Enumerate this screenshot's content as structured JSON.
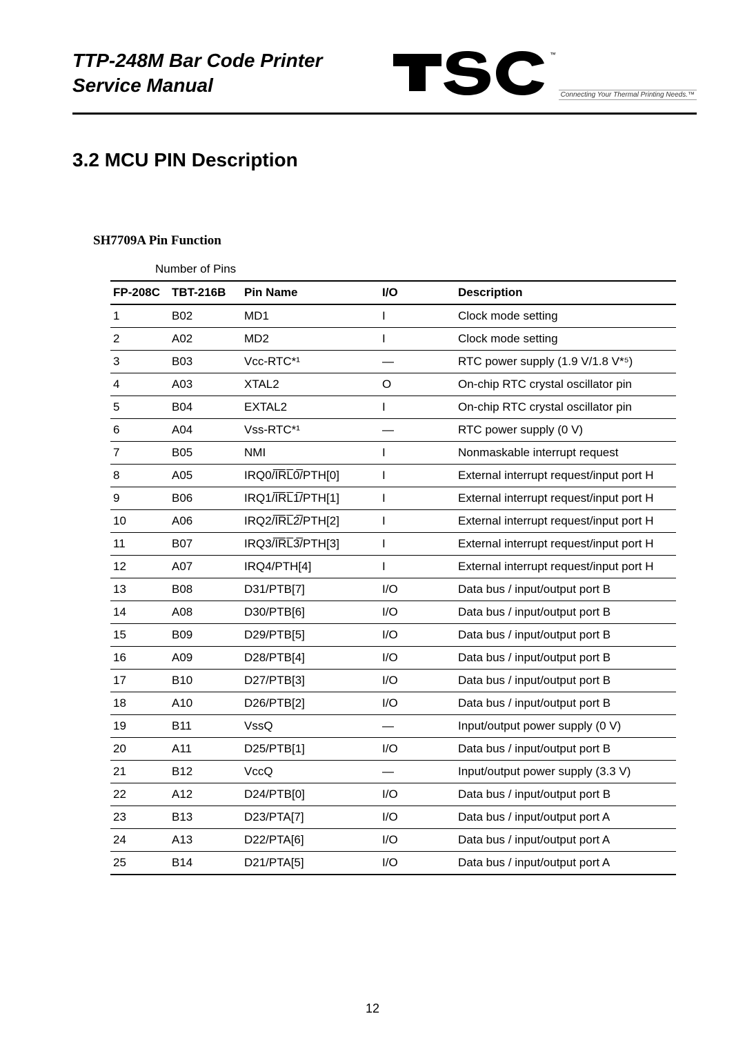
{
  "header": {
    "title_line1": "TTP-248M Bar Code Printer",
    "title_line2": "Service Manual",
    "tagline": "Connecting Your Thermal Printing Needs.™"
  },
  "section": {
    "number": "3.2",
    "title": "MCU PIN Description"
  },
  "sub_title": "SH7709A Pin Function",
  "table": {
    "group_header": "Number of Pins",
    "columns": {
      "fp": "FP-208C",
      "tbt": "TBT-216B",
      "name": "Pin Name",
      "io": "I/O",
      "desc": "Description"
    },
    "rows": [
      {
        "fp": "1",
        "tbt": "B02",
        "name": "MD1",
        "io": "I",
        "desc": "Clock mode setting"
      },
      {
        "fp": "2",
        "tbt": "A02",
        "name": "MD2",
        "io": "I",
        "desc": "Clock mode setting"
      },
      {
        "fp": "3",
        "tbt": "B03",
        "name": "Vcc-RTC*¹",
        "io": "—",
        "desc": "RTC power supply (1.9 V/1.8 V*⁵)"
      },
      {
        "fp": "4",
        "tbt": "A03",
        "name": "XTAL2",
        "io": "O",
        "desc": "On-chip RTC crystal oscillator pin"
      },
      {
        "fp": "5",
        "tbt": "B04",
        "name": "EXTAL2",
        "io": "I",
        "desc": "On-chip RTC crystal oscillator pin"
      },
      {
        "fp": "6",
        "tbt": "A04",
        "name": "Vss-RTC*¹",
        "io": "—",
        "desc": "RTC power supply (0 V)"
      },
      {
        "fp": "7",
        "tbt": "B05",
        "name": "NMI",
        "io": "I",
        "desc": "Nonmaskable interrupt request"
      },
      {
        "fp": "8",
        "tbt": "A05",
        "name": "IRQ0/I̅R̅L̅0̅/PTH[0]",
        "io": "I",
        "desc": "External interrupt request/input port H"
      },
      {
        "fp": "9",
        "tbt": "B06",
        "name": "IRQ1/I̅R̅L̅1̅/PTH[1]",
        "io": "I",
        "desc": "External interrupt request/input port H"
      },
      {
        "fp": "10",
        "tbt": "A06",
        "name": "IRQ2/I̅R̅L̅2̅/PTH[2]",
        "io": "I",
        "desc": "External interrupt request/input port H"
      },
      {
        "fp": "11",
        "tbt": "B07",
        "name": "IRQ3/I̅R̅L̅3̅/PTH[3]",
        "io": "I",
        "desc": "External interrupt request/input port H"
      },
      {
        "fp": "12",
        "tbt": "A07",
        "name": "IRQ4/PTH[4]",
        "io": "I",
        "desc": "External interrupt request/input port H"
      },
      {
        "fp": "13",
        "tbt": "B08",
        "name": "D31/PTB[7]",
        "io": "I/O",
        "desc": "Data bus / input/output port B"
      },
      {
        "fp": "14",
        "tbt": "A08",
        "name": "D30/PTB[6]",
        "io": "I/O",
        "desc": "Data bus / input/output port B"
      },
      {
        "fp": "15",
        "tbt": "B09",
        "name": "D29/PTB[5]",
        "io": "I/O",
        "desc": "Data bus / input/output port B"
      },
      {
        "fp": "16",
        "tbt": "A09",
        "name": "D28/PTB[4]",
        "io": "I/O",
        "desc": "Data bus / input/output port B"
      },
      {
        "fp": "17",
        "tbt": "B10",
        "name": "D27/PTB[3]",
        "io": "I/O",
        "desc": "Data bus / input/output port B"
      },
      {
        "fp": "18",
        "tbt": "A10",
        "name": "D26/PTB[2]",
        "io": "I/O",
        "desc": "Data bus / input/output port B"
      },
      {
        "fp": "19",
        "tbt": "B11",
        "name": "VssQ",
        "io": "—",
        "desc": "Input/output power supply (0 V)"
      },
      {
        "fp": "20",
        "tbt": "A11",
        "name": "D25/PTB[1]",
        "io": "I/O",
        "desc": "Data bus / input/output port B"
      },
      {
        "fp": "21",
        "tbt": "B12",
        "name": "VccQ",
        "io": "—",
        "desc": "Input/output power supply (3.3 V)"
      },
      {
        "fp": "22",
        "tbt": "A12",
        "name": "D24/PTB[0]",
        "io": "I/O",
        "desc": "Data bus / input/output port B"
      },
      {
        "fp": "23",
        "tbt": "B13",
        "name": "D23/PTA[7]",
        "io": "I/O",
        "desc": "Data bus / input/output port A"
      },
      {
        "fp": "24",
        "tbt": "A13",
        "name": "D22/PTA[6]",
        "io": "I/O",
        "desc": "Data bus / input/output port A"
      },
      {
        "fp": "25",
        "tbt": "B14",
        "name": "D21/PTA[5]",
        "io": "I/O",
        "desc": "Data bus / input/output port A"
      }
    ]
  },
  "page_number": "12",
  "style": {
    "body_bg": "#ffffff",
    "text_color": "#000000",
    "logo_stroke": "#000000",
    "logo_tm": "#000000"
  }
}
